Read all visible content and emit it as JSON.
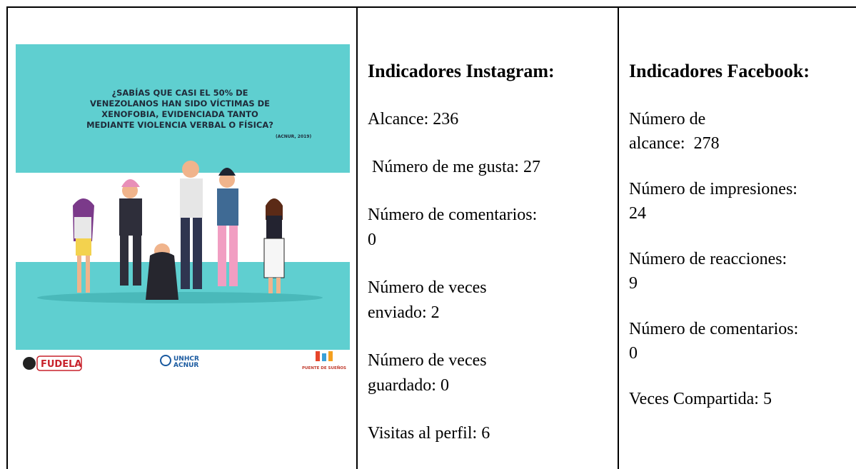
{
  "image": {
    "headline": [
      "¿SABÍAS QUE CASI EL 50% DE",
      "VENEZOLANOS HAN SIDO VÍCTIMAS DE",
      "XENOFOBIA, EVIDENCIADA TANTO",
      "MEDIANTE VIOLENCIA VERBAL O FÍSICA?"
    ],
    "source": "(ACNUR, 2019)",
    "logos": [
      "FUDELA",
      "UNHCR",
      "ACNUR",
      "PUENTE DE SUEÑOS"
    ]
  },
  "instagram": {
    "title": "Indicadores Instagram:",
    "items": [
      [
        "Alcance: 236"
      ],
      [
        " Número de me gusta: 27"
      ],
      [
        "Número de comentarios:",
        "0"
      ],
      [
        "Número de veces",
        "enviado: 2"
      ],
      [
        "Número de veces",
        "guardado: 0"
      ],
      [
        "Visitas al perfil: 6"
      ]
    ]
  },
  "facebook": {
    "title": "Indicadores Facebook:",
    "items": [
      [
        "Número de",
        "alcance:  278"
      ],
      [
        "Número de impresiones:",
        "24"
      ],
      [
        "Número de reacciones:",
        "9"
      ],
      [
        "Número de comentarios:",
        "0"
      ],
      [
        "Veces Compartida: 5"
      ]
    ]
  }
}
